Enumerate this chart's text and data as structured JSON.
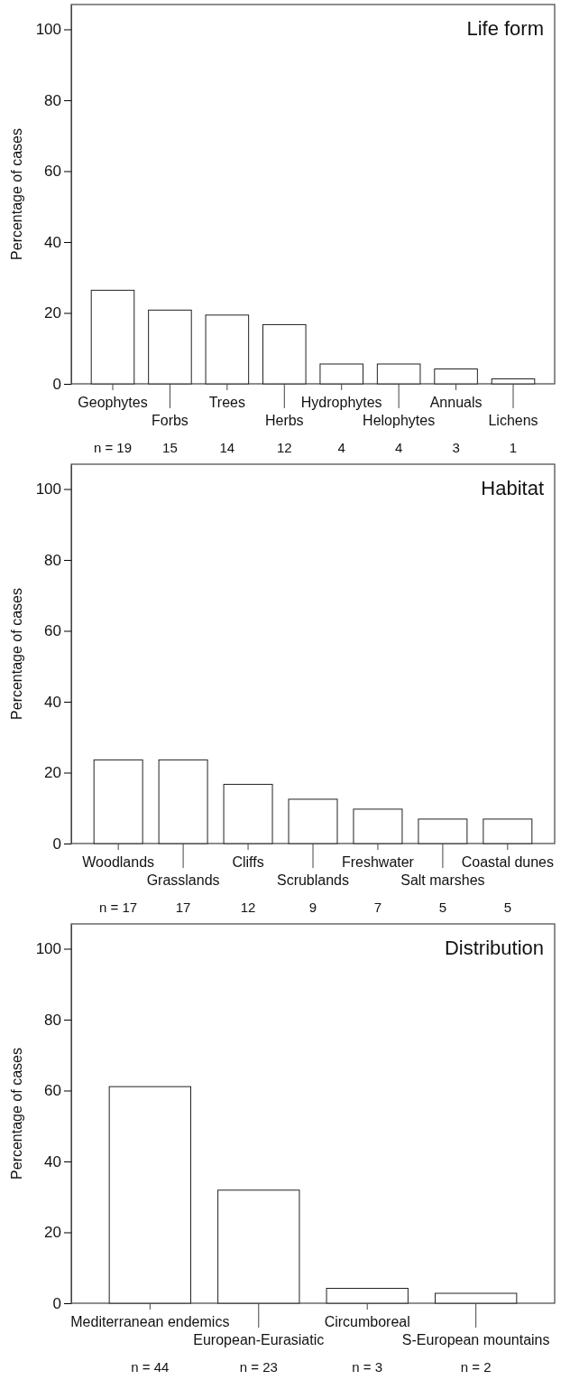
{
  "chart_data": [
    {
      "type": "bar",
      "title": "Life form",
      "ylabel": "Percentage of cases",
      "categories": [
        "Geophytes",
        "Forbs",
        "Trees",
        "Herbs",
        "Hydrophytes",
        "Helophytes",
        "Annuals",
        "Lichens"
      ],
      "values": [
        26.4,
        20.8,
        19.4,
        16.7,
        5.6,
        5.6,
        4.2,
        1.4
      ],
      "color": "#ffffff",
      "ylim": [
        0,
        107
      ],
      "yticks": [
        0,
        20,
        40,
        60,
        80,
        100
      ],
      "annotations": [
        "n = 19",
        "15",
        "14",
        "12",
        "4",
        "4",
        "3",
        "1"
      ]
    },
    {
      "type": "bar",
      "title": "Habitat",
      "ylabel": "Percentage of cases",
      "categories": [
        "Woodlands",
        "Grasslands",
        "Cliffs",
        "Scrublands",
        "Freshwater",
        "Salt marshes",
        "Coastal dunes"
      ],
      "values": [
        23.6,
        23.6,
        16.7,
        12.5,
        9.7,
        6.9,
        6.9
      ],
      "color": "#ffffff",
      "ylim": [
        0,
        107
      ],
      "yticks": [
        0,
        20,
        40,
        60,
        80,
        100
      ],
      "annotations": [
        "n = 17",
        "17",
        "12",
        "9",
        "7",
        "5",
        "5"
      ]
    },
    {
      "type": "bar",
      "title": "Distribution",
      "ylabel": "Percentage of cases",
      "categories": [
        "Mediterranean endemics",
        "European-Eurasiatic",
        "Circumboreal",
        "S-European mountains"
      ],
      "values": [
        61.1,
        31.9,
        4.2,
        2.8
      ],
      "color": "#ffffff",
      "ylim": [
        0,
        107
      ],
      "yticks": [
        0,
        20,
        40,
        60,
        80,
        100
      ],
      "annotations": [
        "n = 44",
        "n = 23",
        "n = 3",
        "n = 2"
      ]
    }
  ]
}
